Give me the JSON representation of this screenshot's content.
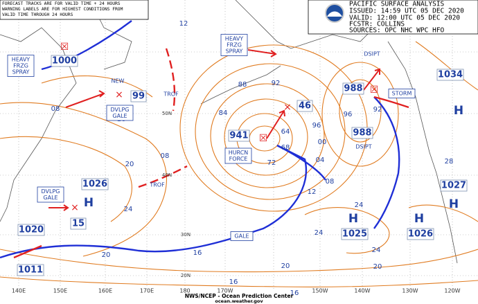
{
  "header": {
    "title": "PACIFIC SURFACE ANALYSIS",
    "issued": "ISSUED: 14:59 UTC 05 DEC 2020",
    "valid": "VALID: 12:00 UTC 05 DEC 2020",
    "forecaster": "FCSTR: COLLINS",
    "sources": "SOURCES: OPC NHC WPC HFO"
  },
  "note": [
    "FORECAST TRACKS ARE FOR VALID TIME + 24 HOURS",
    "WARNING LABELS ARE FOR HIGHEST CONDITIONS FROM",
    "VALID TIME THROUGH 24 HOURS"
  ],
  "centers": [
    "1000",
    "99",
    "941",
    "46",
    "988",
    "988",
    "1034",
    "1026",
    "15",
    "1020",
    "1011",
    "1025",
    "1026",
    "1027"
  ],
  "highs": [
    "H",
    "H",
    "H",
    "H",
    "H"
  ],
  "warnings": [
    [
      "HEAVY",
      "FRZG",
      "SPRAY"
    ],
    [
      "DVLPG",
      "GALE"
    ],
    [
      "HEAVY",
      "FRZG",
      "SPRAY"
    ],
    [
      "HURCN",
      "FORCE"
    ],
    [
      "DVLPG",
      "GALE"
    ],
    [
      "GALE"
    ],
    [
      "STORM"
    ]
  ],
  "features": [
    "TROF",
    "TROF",
    "DSIPT",
    "DSIPT",
    "NEW"
  ],
  "isobars": [
    "12",
    "08",
    "16",
    "20",
    "08",
    "24",
    "20",
    "16",
    "84",
    "88",
    "92",
    "96",
    "00",
    "04",
    "08",
    "12",
    "72",
    "68",
    "64",
    "24",
    "20",
    "16",
    "16",
    "20",
    "24",
    "24",
    "28",
    "92",
    "96"
  ],
  "longitudes": [
    "140E",
    "150E",
    "160E",
    "170E",
    "180",
    "170W",
    "150W",
    "140W",
    "130W",
    "120W"
  ],
  "latitudes": [
    "50N",
    "40N",
    "30N",
    "20N"
  ],
  "footer": [
    "NWS/NCEP - Ocean Prediction Center",
    "ocean.weather.gov"
  ]
}
